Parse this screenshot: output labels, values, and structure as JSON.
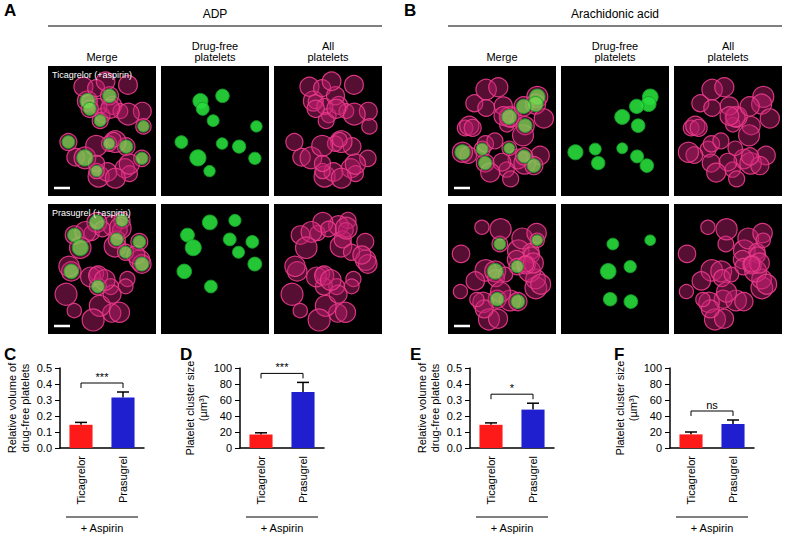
{
  "image_panels": [
    {
      "label": "A",
      "header": "ADP",
      "columns": [
        "Merge",
        "Drug-free platelets",
        "All platelets"
      ],
      "rows": [
        "Ticagrelor (+aspirin)",
        "Prasugrel (+aspirin)"
      ]
    },
    {
      "label": "B",
      "header": "Arachidonic acid",
      "columns": [
        "Merge",
        "Drug-free platelets",
        "All platelets"
      ]
    }
  ],
  "chart_data": [
    {
      "type": "bar",
      "label": "C",
      "ylabel": "Relative volume of\ndrug-free platelets",
      "categories": [
        "Ticagrelor",
        "Prasugrel"
      ],
      "values": [
        0.145,
        0.315
      ],
      "errors": [
        0.015,
        0.035
      ],
      "colors": [
        "#ff1a1a",
        "#1f1fd0"
      ],
      "ylim": [
        0,
        0.5
      ],
      "yticks": [
        {
          "value": 0,
          "label": "0.0"
        },
        0.1,
        0.2,
        0.3,
        0.4,
        0.5
      ],
      "grid": false,
      "group_label": "+ Aspirin",
      "significance": "***"
    },
    {
      "type": "bar",
      "label": "D",
      "ylabel": "Platelet cluster size\n(µm³)",
      "categories": [
        "Ticagrelor",
        "Prasugrel"
      ],
      "values": [
        17,
        70
      ],
      "errors": [
        2,
        12
      ],
      "colors": [
        "#ff1a1a",
        "#1f1fd0"
      ],
      "ylim": [
        0,
        100
      ],
      "yticks": [
        0,
        20,
        40,
        60,
        80,
        100
      ],
      "grid": false,
      "group_label": "+ Aspirin",
      "significance": "***"
    },
    {
      "type": "bar",
      "label": "E",
      "ylabel": "Relative volume of\ndrug-free platelets",
      "categories": [
        "Ticagrelor",
        "Prasugrel"
      ],
      "values": [
        0.145,
        0.24
      ],
      "errors": [
        0.012,
        0.04
      ],
      "colors": [
        "#ff1a1a",
        "#1f1fd0"
      ],
      "ylim": [
        0,
        0.5
      ],
      "yticks": [
        {
          "value": 0,
          "label": "0.0"
        },
        0.1,
        0.2,
        0.3,
        0.4,
        0.5
      ],
      "grid": false,
      "group_label": "+ Aspirin",
      "significance": "*"
    },
    {
      "type": "bar",
      "label": "F",
      "ylabel": "Platelet cluster size\n(µm³)",
      "categories": [
        "Ticagrelor",
        "Prasugrel"
      ],
      "values": [
        17,
        30
      ],
      "errors": [
        3,
        5
      ],
      "colors": [
        "#ff1a1a",
        "#1f1fd0"
      ],
      "ylim": [
        0,
        100
      ],
      "yticks": [
        0,
        20,
        40,
        60,
        80,
        100
      ],
      "grid": false,
      "group_label": "+ Aspirin",
      "significance": "ns"
    }
  ]
}
